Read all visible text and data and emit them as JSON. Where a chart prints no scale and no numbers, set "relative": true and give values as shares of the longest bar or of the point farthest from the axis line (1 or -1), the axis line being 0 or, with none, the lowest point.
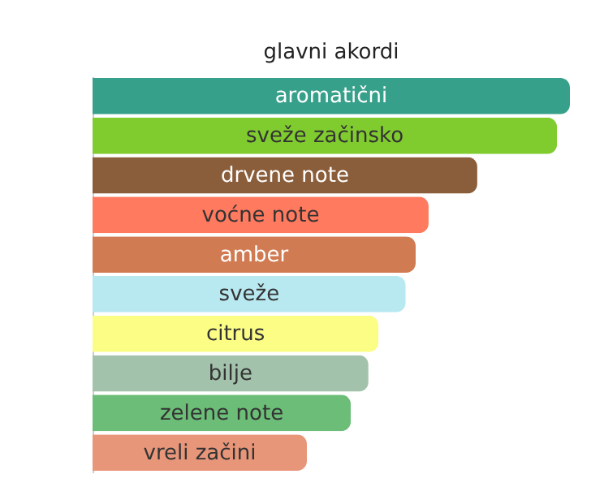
{
  "chart_data": {
    "type": "bar",
    "orientation": "horizontal",
    "relative": true,
    "title": "glavni akordi",
    "categories": [
      "aromatični",
      "sveže začinsko",
      "drvene note",
      "voćne note",
      "amber",
      "sveže",
      "citrus",
      "bilje",
      "zelene note",
      "vreli začini"
    ],
    "values": [
      1,
      0.973,
      0.806,
      0.704,
      0.677,
      0.656,
      0.599,
      0.578,
      0.541,
      0.449
    ],
    "colors": [
      "#37a08a",
      "#80cc2f",
      "#8b5e3b",
      "#ff7a5e",
      "#d07b52",
      "#b8e8f0",
      "#fbfd85",
      "#a3c2ab",
      "#6bbd77",
      "#e8967a"
    ]
  }
}
